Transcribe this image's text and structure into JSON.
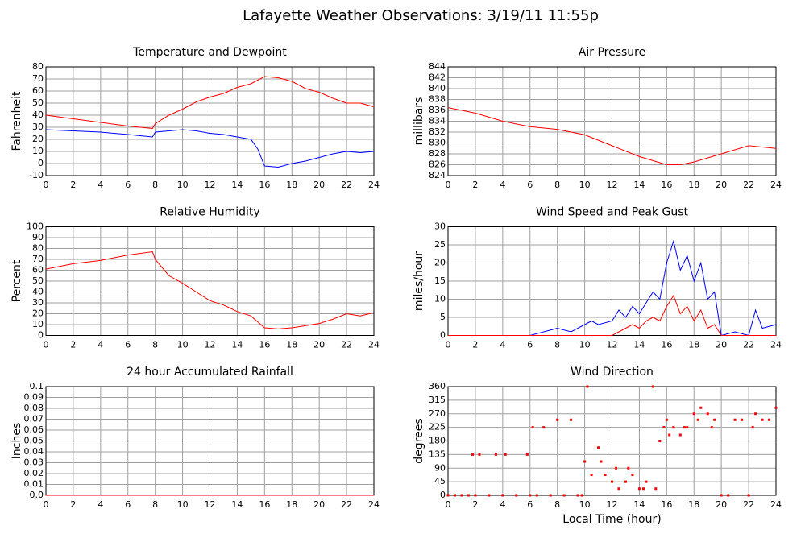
{
  "title": "Lafayette Weather Observations: 3/19/11 11:55p",
  "chart_data": [
    {
      "type": "line",
      "title": "Temperature and Dewpoint",
      "ylabel": "Fahrenheit",
      "grid": true,
      "x": [
        0,
        2,
        4,
        6,
        7.8,
        8,
        9,
        10,
        11,
        12,
        13,
        14,
        15,
        15.5,
        16,
        17,
        18,
        19,
        20,
        21,
        22,
        23,
        24
      ],
      "series": [
        {
          "name": "Temperature",
          "color": "#ff0000",
          "values": [
            40,
            37,
            34,
            31,
            29,
            33,
            40,
            45,
            51,
            55,
            58,
            63,
            66,
            69,
            72,
            71,
            68,
            62,
            59,
            54,
            50,
            50,
            47
          ]
        },
        {
          "name": "Dewpoint",
          "color": "#0000ff",
          "values": [
            28,
            27,
            26,
            24,
            22,
            26,
            27,
            28,
            27,
            25,
            24,
            22,
            20,
            12,
            -2,
            -3,
            0,
            2,
            5,
            8,
            10,
            9,
            10
          ]
        }
      ],
      "xlim": [
        0,
        24
      ],
      "xticks": [
        0,
        2,
        4,
        6,
        8,
        10,
        12,
        14,
        16,
        18,
        20,
        22,
        24
      ],
      "ylim": [
        -10,
        80
      ],
      "yticks": [
        -10,
        0,
        10,
        20,
        30,
        40,
        50,
        60,
        70,
        80
      ]
    },
    {
      "type": "line",
      "title": "Air Pressure",
      "ylabel": "millibars",
      "grid": true,
      "x": [
        0,
        2,
        4,
        6,
        8,
        10,
        12,
        14,
        16,
        17,
        18,
        20,
        22,
        24
      ],
      "series": [
        {
          "name": "Pressure",
          "color": "#ff0000",
          "values": [
            836.5,
            835.5,
            834,
            833,
            832.5,
            831.5,
            829.5,
            827.5,
            826,
            826,
            826.5,
            828,
            829.5,
            829
          ]
        }
      ],
      "xlim": [
        0,
        24
      ],
      "xticks": [
        0,
        2,
        4,
        6,
        8,
        10,
        12,
        14,
        16,
        18,
        20,
        22,
        24
      ],
      "ylim": [
        824,
        844
      ],
      "yticks": [
        824,
        826,
        828,
        830,
        832,
        834,
        836,
        838,
        840,
        842,
        844
      ]
    },
    {
      "type": "line",
      "title": "Relative Humidity",
      "ylabel": "Percent",
      "grid": true,
      "x": [
        0,
        2,
        4,
        6,
        7.8,
        8,
        9,
        10,
        11,
        12,
        13,
        14,
        15,
        16,
        17,
        18,
        19,
        20,
        21,
        22,
        23,
        24
      ],
      "series": [
        {
          "name": "Humidity",
          "color": "#ff0000",
          "values": [
            61,
            66,
            69,
            74,
            77,
            70,
            55,
            48,
            40,
            32,
            28,
            22,
            18,
            7,
            6,
            7,
            9,
            11,
            15,
            20,
            18,
            21
          ]
        }
      ],
      "xlim": [
        0,
        24
      ],
      "xticks": [
        0,
        2,
        4,
        6,
        8,
        10,
        12,
        14,
        16,
        18,
        20,
        22,
        24
      ],
      "ylim": [
        0,
        100
      ],
      "yticks": [
        0,
        10,
        20,
        30,
        40,
        50,
        60,
        70,
        80,
        90,
        100
      ]
    },
    {
      "type": "line",
      "title": "Wind Speed and Peak Gust",
      "ylabel": "miles/hour",
      "grid": true,
      "x": [
        0,
        2,
        4,
        6,
        7,
        8,
        9,
        10,
        10.5,
        11,
        12,
        12.5,
        13,
        13.5,
        14,
        14.5,
        15,
        15.5,
        16,
        16.5,
        17,
        17.5,
        18,
        18.5,
        19,
        19.5,
        20,
        21,
        22,
        22.5,
        23,
        24
      ],
      "series": [
        {
          "name": "Peak Gust",
          "color": "#0000ff",
          "values": [
            0,
            0,
            0,
            0,
            1,
            2,
            1,
            3,
            4,
            3,
            4,
            7,
            5,
            8,
            6,
            9,
            12,
            10,
            20,
            26,
            18,
            22,
            15,
            20,
            10,
            12,
            0,
            1,
            0,
            7,
            2,
            3
          ]
        },
        {
          "name": "Wind Speed",
          "color": "#ff0000",
          "values": [
            0,
            0,
            0,
            0,
            0,
            0,
            0,
            0,
            0,
            0,
            0,
            1,
            2,
            3,
            2,
            4,
            5,
            4,
            8,
            11,
            6,
            8,
            4,
            7,
            2,
            3,
            0,
            0,
            0,
            0,
            0,
            0
          ]
        }
      ],
      "xlim": [
        0,
        24
      ],
      "xticks": [
        0,
        2,
        4,
        6,
        8,
        10,
        12,
        14,
        16,
        18,
        20,
        22,
        24
      ],
      "ylim": [
        0,
        30
      ],
      "yticks": [
        0,
        5,
        10,
        15,
        20,
        25,
        30
      ]
    },
    {
      "type": "line",
      "title": "24 hour Accumulated Rainfall",
      "ylabel": "Inches",
      "grid": true,
      "x": [
        0,
        24
      ],
      "series": [
        {
          "name": "Rainfall",
          "color": "#ff0000",
          "values": [
            0,
            0
          ]
        }
      ],
      "xlim": [
        0,
        24
      ],
      "xticks": [
        0,
        2,
        4,
        6,
        8,
        10,
        12,
        14,
        16,
        18,
        20,
        22,
        24
      ],
      "ylim": [
        0,
        0.1
      ],
      "yticks": [
        {
          "value": 0,
          "label": "0.0"
        },
        0.01,
        0.02,
        0.03,
        0.04,
        0.05,
        0.06,
        0.07,
        0.08,
        0.09,
        {
          "value": 0.1,
          "label": "0.1"
        }
      ]
    },
    {
      "type": "scatter",
      "title": "Wind Direction",
      "ylabel": "degrees",
      "xlabel": "Local Time (hour)",
      "grid": true,
      "color": "#ff0000",
      "x": [
        0,
        0.5,
        1,
        1.5,
        1.8,
        2,
        2.3,
        3,
        3.5,
        4,
        4.2,
        5,
        5.8,
        6,
        6.2,
        6.5,
        7,
        7.5,
        8,
        8.5,
        9,
        9.5,
        9.8,
        10,
        10.2,
        10.5,
        11,
        11.2,
        11.5,
        12,
        12.3,
        12.5,
        13,
        13.2,
        13.5,
        14,
        14.3,
        14.5,
        15,
        15.2,
        15.5,
        15.8,
        16,
        16.2,
        16.5,
        17,
        17.3,
        17.5,
        18,
        18.3,
        18.5,
        19,
        19.3,
        19.5,
        20,
        20.5,
        21,
        21.5,
        22,
        22.3,
        22.5,
        23,
        23.5,
        24
      ],
      "values": [
        0,
        0,
        0,
        0,
        135,
        0,
        135,
        0,
        135,
        0,
        135,
        0,
        135,
        0,
        225,
        0,
        225,
        0,
        250,
        0,
        250,
        0,
        0,
        112,
        360,
        68,
        158,
        112,
        68,
        45,
        90,
        22,
        45,
        90,
        68,
        22,
        22,
        45,
        360,
        22,
        180,
        225,
        250,
        200,
        225,
        200,
        225,
        225,
        270,
        250,
        290,
        270,
        225,
        250,
        0,
        0,
        250,
        250,
        0,
        225,
        270,
        250,
        250,
        290
      ],
      "xlim": [
        0,
        24
      ],
      "xticks": [
        0,
        2,
        4,
        6,
        8,
        10,
        12,
        14,
        16,
        18,
        20,
        22,
        24
      ],
      "ylim": [
        0,
        360
      ],
      "yticks": [
        0,
        45,
        90,
        135,
        180,
        225,
        270,
        315,
        360
      ]
    }
  ]
}
